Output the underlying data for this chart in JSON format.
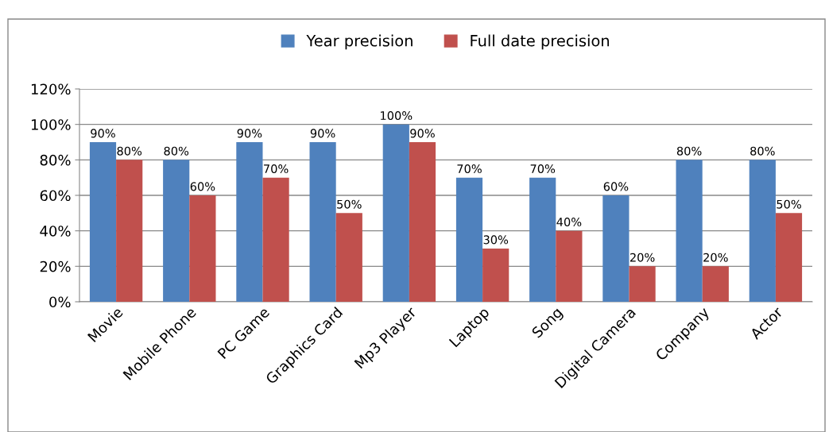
{
  "chart_data": {
    "type": "bar",
    "categories": [
      "Movie",
      "Mobile Phone",
      "PC Game",
      "Graphics Card",
      "Mp3 Player",
      "Laptop",
      "Song",
      "Digital Camera",
      "Company",
      "Actor"
    ],
    "series": [
      {
        "name": "Year precision",
        "color": "#4f81bd",
        "values": [
          90,
          80,
          90,
          90,
          100,
          70,
          70,
          60,
          80,
          80
        ],
        "value_labels": [
          "90%",
          "80%",
          "90%",
          "90%",
          "100%",
          "70%",
          "70%",
          "60%",
          "80%",
          "80%"
        ]
      },
      {
        "name": "Full date precision",
        "color": "#c0504d",
        "values": [
          80,
          60,
          70,
          50,
          90,
          30,
          40,
          20,
          20,
          50
        ],
        "value_labels": [
          "80%",
          "60%",
          "70%",
          "50%",
          "90%",
          "30%",
          "40%",
          "20%",
          "20%",
          "50%"
        ]
      }
    ],
    "ylim": [
      0,
      120
    ],
    "yticks": [
      {
        "value": 0,
        "label": "0%"
      },
      {
        "value": 20,
        "label": "20%"
      },
      {
        "value": 40,
        "label": "40%"
      },
      {
        "value": 60,
        "label": "60%"
      },
      {
        "value": 80,
        "label": "80%"
      },
      {
        "value": 100,
        "label": "100%"
      },
      {
        "value": 120,
        "label": "120%"
      }
    ],
    "grid": "y",
    "legend": "top"
  }
}
